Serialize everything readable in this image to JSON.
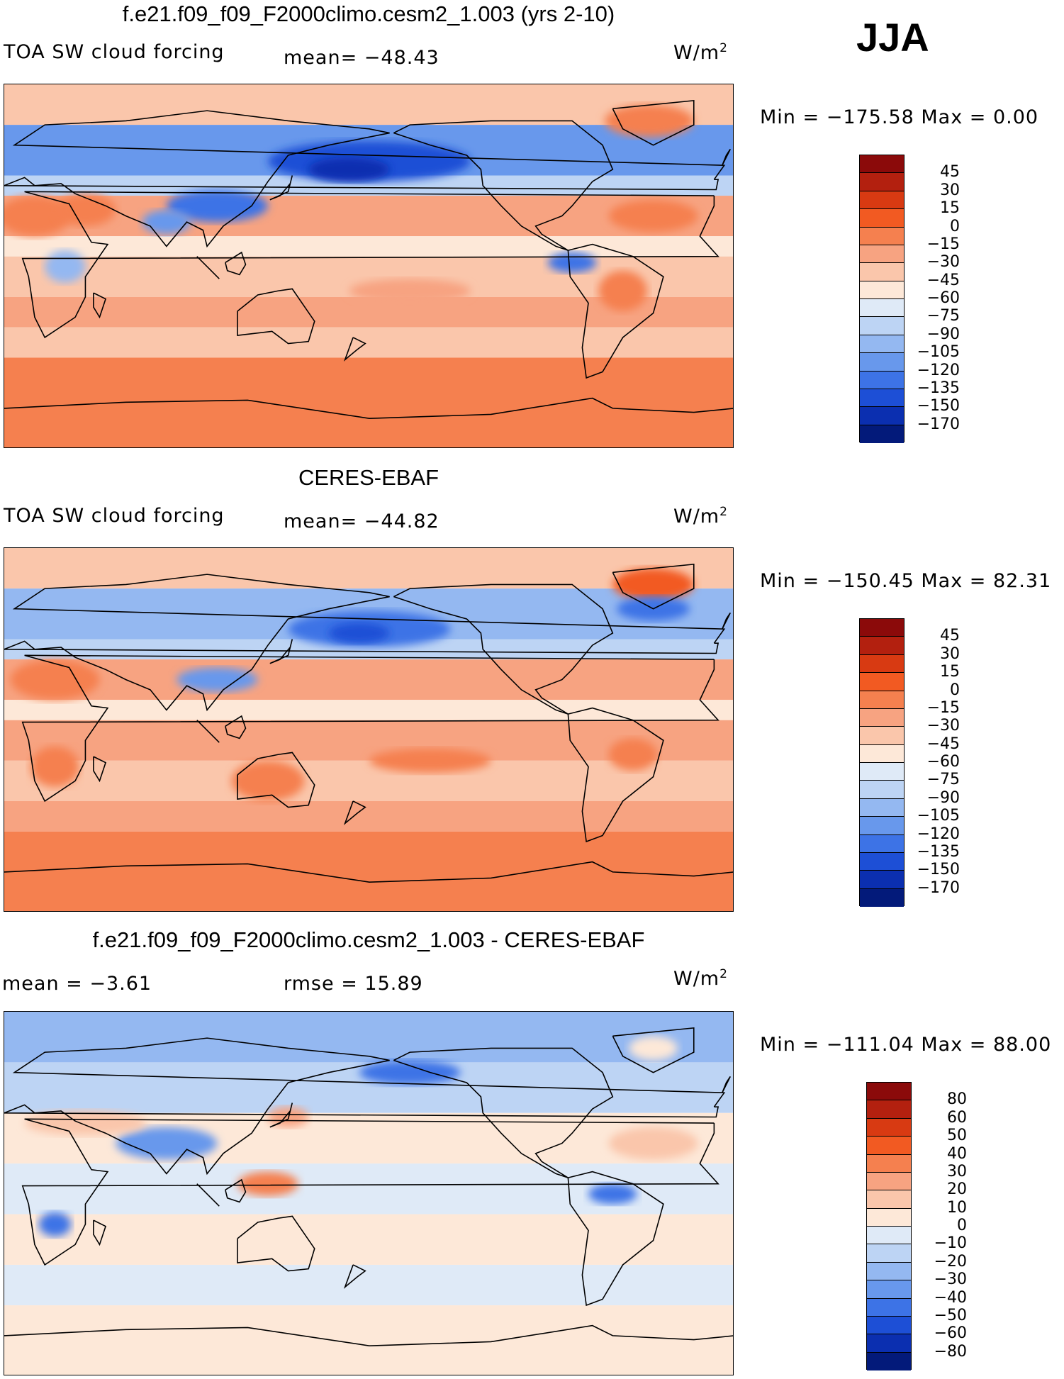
{
  "season": "JJA",
  "panels": [
    {
      "title": "f.e21.f09_f09_F2000climo.cesm2_1.003 (yrs 2-10)",
      "left_label": "TOA SW cloud forcing",
      "mid_label": "mean= −48.43",
      "units": "W/m",
      "units_sup": "2",
      "stats": "Min  =  −175.58  Max  =     0.00",
      "colorbar": {
        "ticks": [
          "45",
          "30",
          "15",
          "0",
          "−15",
          "−30",
          "−45",
          "−60",
          "−75",
          "−90",
          "−105",
          "−120",
          "−135",
          "−150",
          "−170"
        ],
        "colors": [
          "#8b0a0a",
          "#b3200f",
          "#d83a12",
          "#f25a22",
          "#f5804f",
          "#f7a381",
          "#fac6ab",
          "#fde8d8",
          "#dfeaf7",
          "#bdd4f4",
          "#94b8f1",
          "#6898ec",
          "#3d73e6",
          "#1d4fd6",
          "#0b2fb0",
          "#031a7a"
        ]
      },
      "map": {
        "kind": "model",
        "bands": [
          {
            "lat_from": 90,
            "lat_to": 70,
            "color": "#fac6ab"
          },
          {
            "lat_from": 70,
            "lat_to": 45,
            "color": "#6898ec"
          },
          {
            "lat_from": 45,
            "lat_to": 35,
            "color": "#bdd4f4"
          },
          {
            "lat_from": 35,
            "lat_to": 15,
            "color": "#f7a381"
          },
          {
            "lat_from": 15,
            "lat_to": 5,
            "color": "#fde8d8"
          },
          {
            "lat_from": 5,
            "lat_to": -15,
            "color": "#fac6ab"
          },
          {
            "lat_from": -15,
            "lat_to": -30,
            "color": "#f7a381"
          },
          {
            "lat_from": -30,
            "lat_to": -45,
            "color": "#fac6ab"
          },
          {
            "lat_from": -45,
            "lat_to": -90,
            "color": "#f5804f"
          }
        ],
        "blobs": [
          {
            "lon": 180,
            "lat": 52,
            "rx": 50,
            "ry": 10,
            "color": "#1d4fd6"
          },
          {
            "lon": 170,
            "lat": 48,
            "rx": 20,
            "ry": 6,
            "color": "#0b2fb0"
          },
          {
            "lon": 105,
            "lat": 30,
            "rx": 25,
            "ry": 8,
            "color": "#3d73e6"
          },
          {
            "lon": 80,
            "lat": 22,
            "rx": 12,
            "ry": 6,
            "color": "#6898ec"
          },
          {
            "lon": 15,
            "lat": 25,
            "rx": 18,
            "ry": 10,
            "color": "#f5804f"
          },
          {
            "lon": 40,
            "lat": 28,
            "rx": 15,
            "ry": 8,
            "color": "#f5804f"
          },
          {
            "lon": 318,
            "lat": 72,
            "rx": 22,
            "ry": 8,
            "color": "#f5804f"
          },
          {
            "lon": 320,
            "lat": 25,
            "rx": 22,
            "ry": 8,
            "color": "#f5804f"
          },
          {
            "lon": 280,
            "lat": 2,
            "rx": 12,
            "ry": 5,
            "color": "#3d73e6"
          },
          {
            "lon": 305,
            "lat": -12,
            "rx": 12,
            "ry": 10,
            "color": "#f5804f"
          },
          {
            "lon": 200,
            "lat": -12,
            "rx": 30,
            "ry": 6,
            "color": "#f7a381"
          },
          {
            "lon": 30,
            "lat": 0,
            "rx": 10,
            "ry": 8,
            "color": "#94b8f1"
          }
        ]
      }
    },
    {
      "title": "CERES-EBAF",
      "left_label": "TOA SW cloud forcing",
      "mid_label": "mean= −44.82",
      "units": "W/m",
      "units_sup": "2",
      "stats": "Min  =  −150.45  Max  =    82.31",
      "colorbar": {
        "ticks": [
          "45",
          "30",
          "15",
          "0",
          "−15",
          "−30",
          "−45",
          "−60",
          "−75",
          "−90",
          "−105",
          "−120",
          "−135",
          "−150",
          "−170"
        ],
        "colors": [
          "#8b0a0a",
          "#b3200f",
          "#d83a12",
          "#f25a22",
          "#f5804f",
          "#f7a381",
          "#fac6ab",
          "#fde8d8",
          "#dfeaf7",
          "#bdd4f4",
          "#94b8f1",
          "#6898ec",
          "#3d73e6",
          "#1d4fd6",
          "#0b2fb0",
          "#031a7a"
        ]
      },
      "map": {
        "kind": "obs",
        "bands": [
          {
            "lat_from": 90,
            "lat_to": 70,
            "color": "#fac6ab"
          },
          {
            "lat_from": 70,
            "lat_to": 45,
            "color": "#94b8f1"
          },
          {
            "lat_from": 45,
            "lat_to": 35,
            "color": "#bdd4f4"
          },
          {
            "lat_from": 35,
            "lat_to": 15,
            "color": "#f7a381"
          },
          {
            "lat_from": 15,
            "lat_to": 5,
            "color": "#fde8d8"
          },
          {
            "lat_from": 5,
            "lat_to": -15,
            "color": "#f7a381"
          },
          {
            "lat_from": -15,
            "lat_to": -35,
            "color": "#fac6ab"
          },
          {
            "lat_from": -35,
            "lat_to": -50,
            "color": "#f7a381"
          },
          {
            "lat_from": -50,
            "lat_to": -90,
            "color": "#f5804f"
          }
        ],
        "blobs": [
          {
            "lon": 180,
            "lat": 50,
            "rx": 40,
            "ry": 9,
            "color": "#3d73e6"
          },
          {
            "lon": 175,
            "lat": 48,
            "rx": 15,
            "ry": 5,
            "color": "#1d4fd6"
          },
          {
            "lon": 320,
            "lat": 72,
            "rx": 20,
            "ry": 8,
            "color": "#f25a22"
          },
          {
            "lon": 320,
            "lat": 60,
            "rx": 18,
            "ry": 6,
            "color": "#3d73e6"
          },
          {
            "lon": 25,
            "lat": 25,
            "rx": 22,
            "ry": 10,
            "color": "#f5804f"
          },
          {
            "lon": 105,
            "lat": 25,
            "rx": 20,
            "ry": 6,
            "color": "#6898ec"
          },
          {
            "lon": 25,
            "lat": -18,
            "rx": 12,
            "ry": 10,
            "color": "#f5804f"
          },
          {
            "lon": 130,
            "lat": -25,
            "rx": 18,
            "ry": 10,
            "color": "#f5804f"
          },
          {
            "lon": 210,
            "lat": -15,
            "rx": 30,
            "ry": 6,
            "color": "#f5804f"
          },
          {
            "lon": 310,
            "lat": -12,
            "rx": 12,
            "ry": 8,
            "color": "#f5804f"
          }
        ]
      }
    },
    {
      "title": "f.e21.f09_f09_F2000climo.cesm2_1.003 - CERES-EBAF",
      "left_label": "mean  =   −3.61",
      "mid_label": "rmse  =   15.89",
      "units": "W/m",
      "units_sup": "2",
      "stats": "Min  =  −111.04  Max  =    88.00",
      "colorbar": {
        "ticks": [
          "80",
          "60",
          "50",
          "40",
          "30",
          "20",
          "10",
          "0",
          "−10",
          "−20",
          "−30",
          "−40",
          "−50",
          "−60",
          "−80"
        ],
        "colors": [
          "#8b0a0a",
          "#b3200f",
          "#d83a12",
          "#f25a22",
          "#f5804f",
          "#f7a381",
          "#fac6ab",
          "#fde8d8",
          "#dfeaf7",
          "#bdd4f4",
          "#94b8f1",
          "#6898ec",
          "#3d73e6",
          "#1d4fd6",
          "#0b2fb0",
          "#031a7a"
        ]
      },
      "map": {
        "kind": "diff",
        "bands": [
          {
            "lat_from": 90,
            "lat_to": 65,
            "color": "#94b8f1"
          },
          {
            "lat_from": 65,
            "lat_to": 40,
            "color": "#bdd4f4"
          },
          {
            "lat_from": 40,
            "lat_to": 15,
            "color": "#fde8d8"
          },
          {
            "lat_from": 15,
            "lat_to": -10,
            "color": "#dfeaf7"
          },
          {
            "lat_from": -10,
            "lat_to": -35,
            "color": "#fde8d8"
          },
          {
            "lat_from": -35,
            "lat_to": -55,
            "color": "#dfeaf7"
          },
          {
            "lat_from": -55,
            "lat_to": -90,
            "color": "#fde8d8"
          }
        ],
        "blobs": [
          {
            "lon": 200,
            "lat": 60,
            "rx": 25,
            "ry": 6,
            "color": "#3d73e6"
          },
          {
            "lon": 80,
            "lat": 25,
            "rx": 25,
            "ry": 8,
            "color": "#6898ec"
          },
          {
            "lon": 130,
            "lat": 5,
            "rx": 15,
            "ry": 6,
            "color": "#f5804f"
          },
          {
            "lon": 25,
            "lat": -15,
            "rx": 8,
            "ry": 6,
            "color": "#3d73e6"
          },
          {
            "lon": 320,
            "lat": 25,
            "rx": 22,
            "ry": 8,
            "color": "#fac6ab"
          },
          {
            "lon": 320,
            "lat": 72,
            "rx": 12,
            "ry": 6,
            "color": "#fde8d8"
          },
          {
            "lon": 300,
            "lat": 0,
            "rx": 12,
            "ry": 5,
            "color": "#3d73e6"
          },
          {
            "lon": 40,
            "lat": 35,
            "rx": 30,
            "ry": 6,
            "color": "#fac6ab"
          },
          {
            "lon": 140,
            "lat": 38,
            "rx": 10,
            "ry": 5,
            "color": "#f7a381"
          }
        ]
      }
    }
  ]
}
